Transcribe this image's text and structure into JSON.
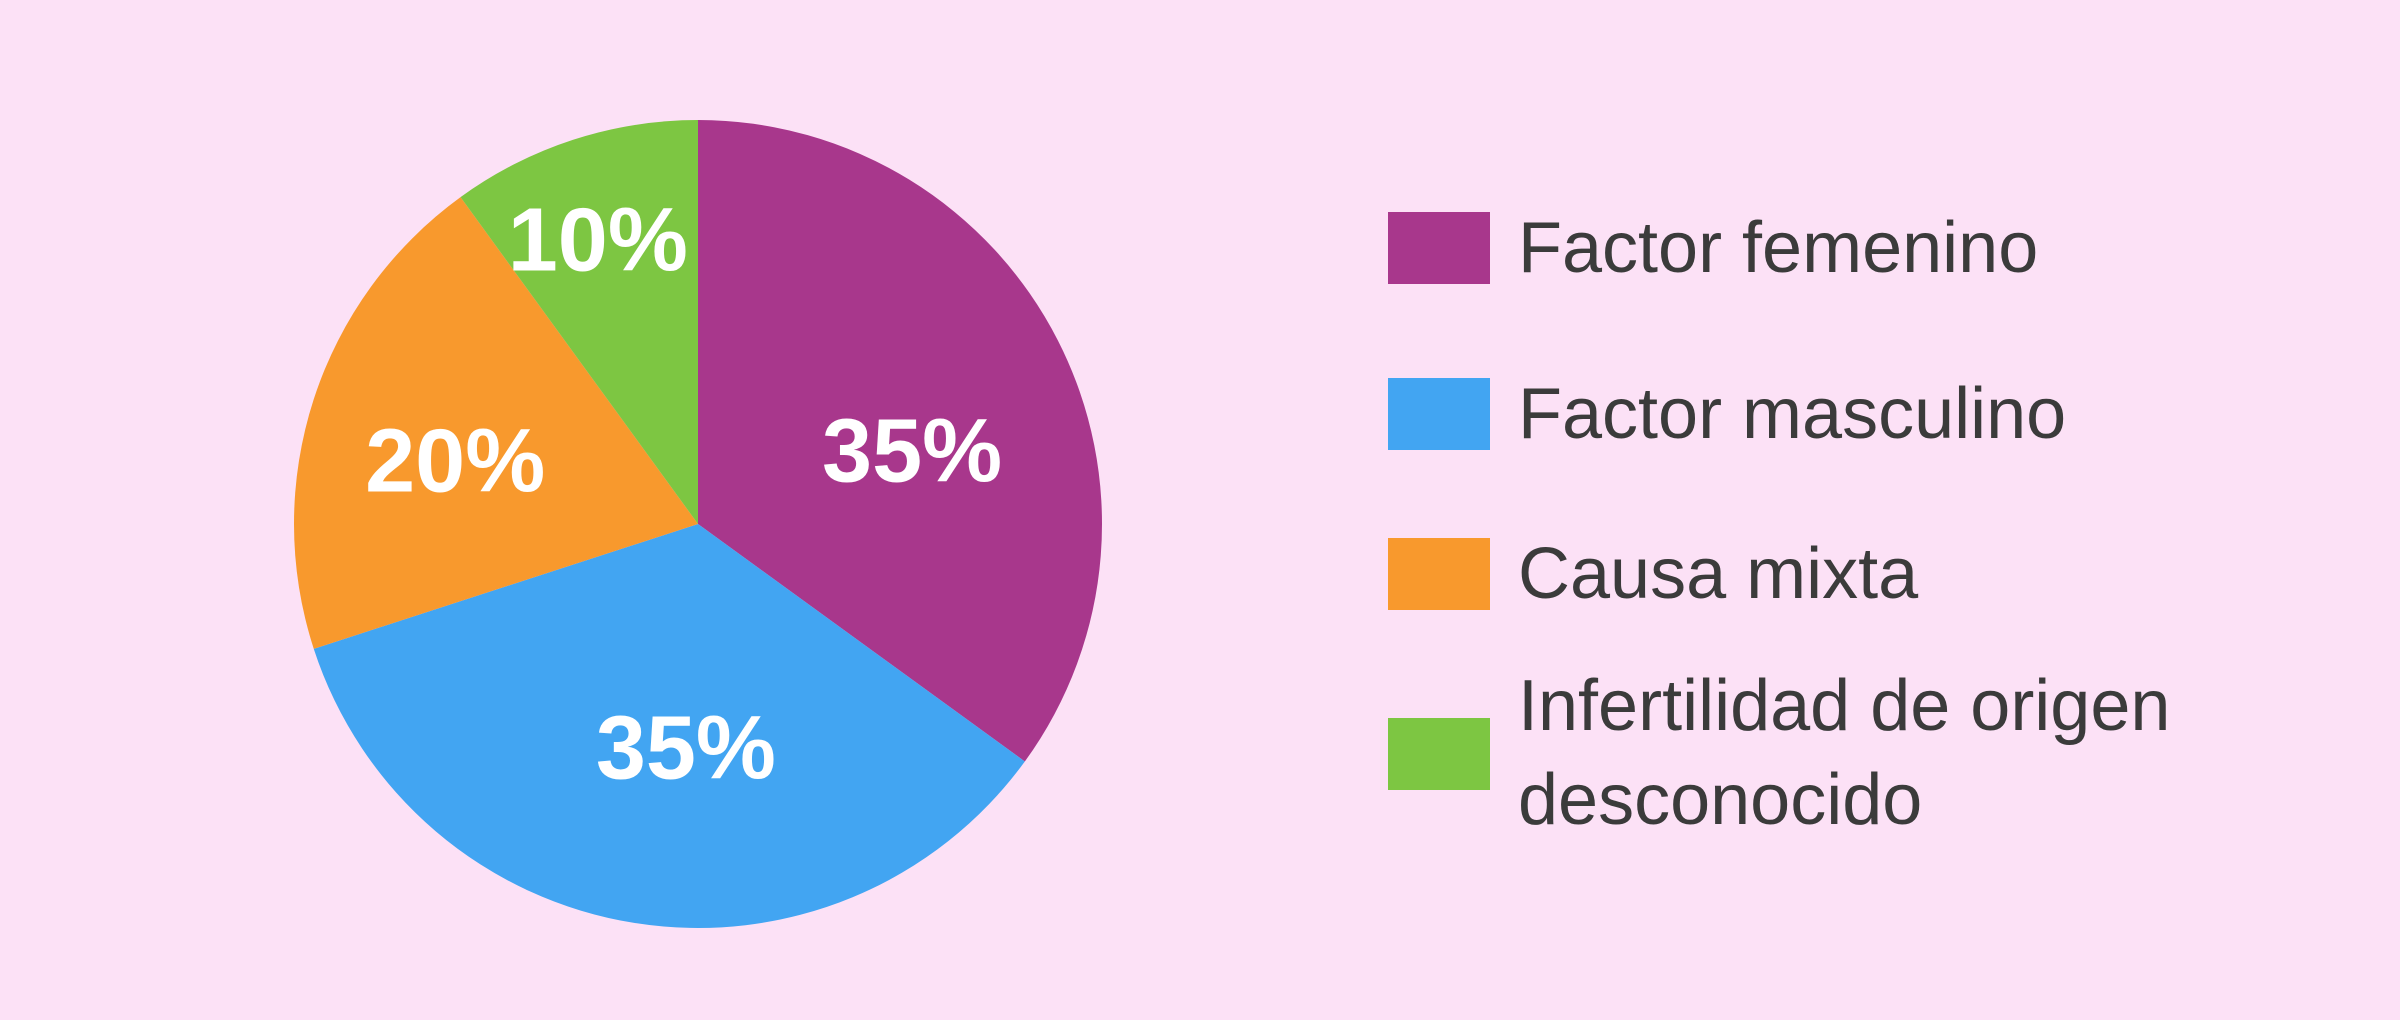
{
  "background_color": "#FCE1F6",
  "chart_data": {
    "type": "pie",
    "title": "",
    "start_angle_deg": 0,
    "direction": "clockwise",
    "grid": false,
    "legend_position": "right",
    "label_color": "#FFFFFF",
    "legend_text_color": "#3B3B3B",
    "slices": [
      {
        "label": "Factor femenino",
        "value": 35,
        "display": "35%",
        "color": "#A8378C",
        "label_pos": {
          "dx": 0.53,
          "dy": -0.183
        }
      },
      {
        "label": "Factor masculino",
        "value": 35,
        "display": "35%",
        "color": "#42A5F2",
        "label_pos": {
          "dx": -0.03,
          "dy": 0.552
        }
      },
      {
        "label": "Causa mixta",
        "value": 20,
        "display": "20%",
        "color": "#F8992D",
        "label_pos": {
          "dx": -0.601,
          "dy": -0.158
        }
      },
      {
        "label": "Infertilidad de origen desconocido",
        "value": 10,
        "display": "10%",
        "color": "#7DC642",
        "label_pos": {
          "dx": -0.248,
          "dy": -0.705
        }
      }
    ]
  }
}
